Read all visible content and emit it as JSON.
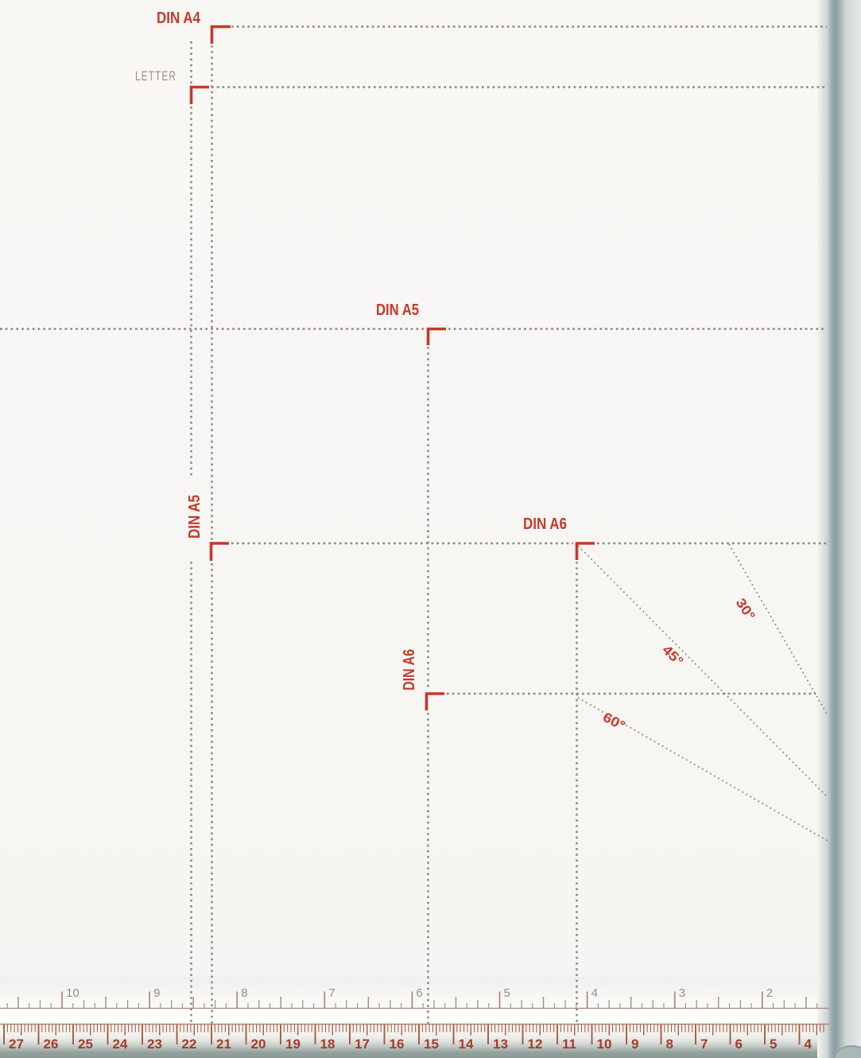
{
  "paper_guides": {
    "din_a4": "DIN A4",
    "letter": "LETTER",
    "din_a5_top": "DIN A5",
    "din_a5_side": "DIN A5",
    "din_a6_top": "DIN A6",
    "din_a6_side": "DIN A6"
  },
  "angles": {
    "deg30": "30°",
    "deg45": "45°",
    "deg60": "60°"
  },
  "ruler": {
    "cm_numbers": [
      27,
      26,
      25,
      24,
      23,
      22,
      21,
      20,
      19,
      18,
      17,
      16,
      15,
      14,
      13,
      12,
      11,
      10,
      9,
      8,
      7,
      6,
      5,
      4
    ],
    "inch_numbers": [
      10,
      9,
      8,
      7,
      6,
      5,
      4,
      3,
      2
    ]
  },
  "colors": {
    "accent_red": "#c5392b",
    "guide_dash_gray": "#87837f",
    "cm_tick": "#a9583f",
    "cm_number": "#a63b28",
    "inch_tick": "#a8897a",
    "inch_number": "#8e8e8c",
    "edge_gray": "#8c9da3",
    "bottom_gray": "#8c9b96"
  }
}
